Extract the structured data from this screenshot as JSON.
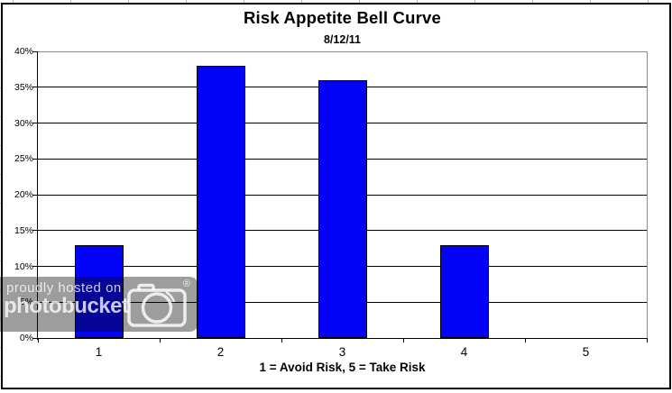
{
  "chart_data": {
    "type": "bar",
    "title": "Risk Appetite Bell Curve",
    "subtitle": "8/12/11",
    "categories": [
      "1",
      "2",
      "3",
      "4",
      "5"
    ],
    "values": [
      13,
      38,
      36,
      13,
      0
    ],
    "xlabel": "1 = Avoid Risk, 5 = Take Risk",
    "ylabel": "",
    "ylim": [
      0,
      40
    ],
    "ytick_step": 5,
    "ytick_labels": [
      "0%",
      "5%",
      "10%",
      "15%",
      "20%",
      "25%",
      "30%",
      "35%",
      "40%"
    ],
    "grid": "on",
    "legend": "none",
    "bar_color": "#0303F7",
    "bar_border_color": "#000000",
    "gridline_color": "#000000",
    "plot_border_color": "#8c8c8c",
    "axis_color": "#000000"
  },
  "watermark": {
    "line1": "proudly hosted on",
    "line2": "photobucket",
    "registered": "®"
  }
}
